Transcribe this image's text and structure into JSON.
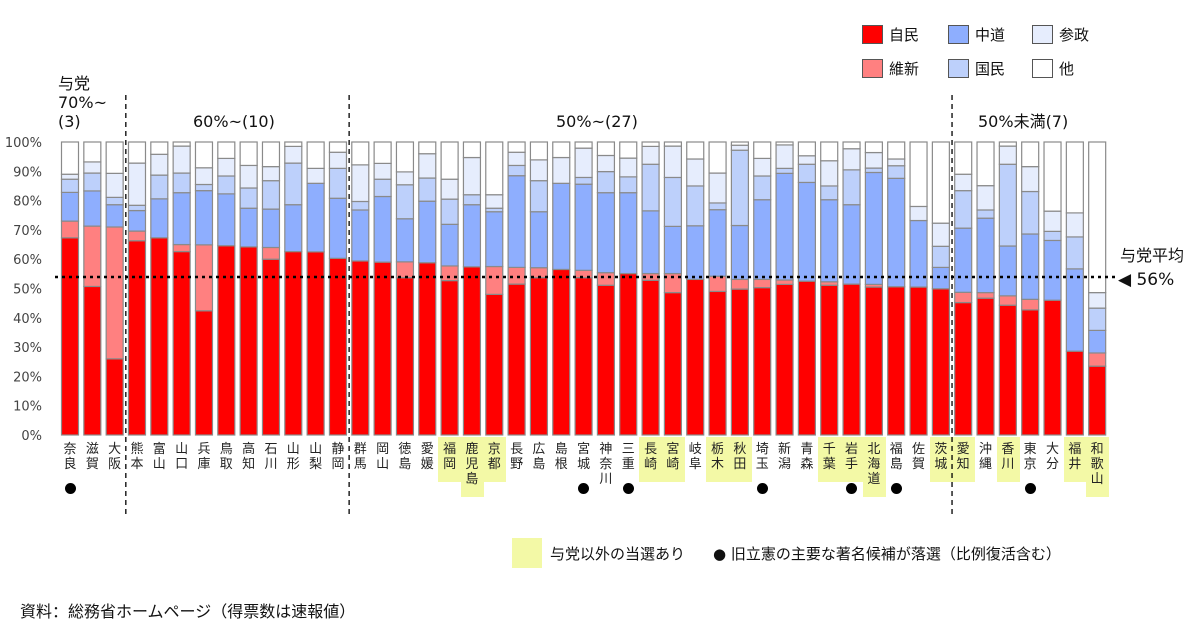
{
  "chart_data": {
    "type": "bar",
    "stacked": true,
    "ylim": [
      0,
      100
    ],
    "y_ticks": [
      "0%",
      "10%",
      "20%",
      "30%",
      "40%",
      "50%",
      "60%",
      "70%",
      "80%",
      "90%",
      "100%"
    ],
    "legend_placement": "top-right",
    "series_names": [
      "自民",
      "維新",
      "中道",
      "国民",
      "参政",
      "他"
    ],
    "series_colors": [
      "#ff0000",
      "#ff8080",
      "#8eaefe",
      "#bdd0fb",
      "#e6edfd",
      "#ffffff"
    ],
    "categories": [
      "奈良",
      "滋賀",
      "大阪",
      "熊本",
      "富山",
      "山口",
      "兵庫",
      "鳥取",
      "高知",
      "石川",
      "山形",
      "山梨",
      "静岡",
      "群馬",
      "岡山",
      "徳島",
      "愛媛",
      "福岡",
      "鹿児島",
      "京都",
      "長野",
      "広島",
      "島根",
      "宮城",
      "神奈川",
      "三重",
      "長崎",
      "宮崎",
      "岐阜",
      "栃木",
      "秋田",
      "埼玉",
      "新潟",
      "青森",
      "千葉",
      "岩手",
      "北海道",
      "福島",
      "佐賀",
      "茨城",
      "愛知",
      "沖縄",
      "香川",
      "東京",
      "大分",
      "福井",
      "和歌山"
    ],
    "series": [
      {
        "name": "自民",
        "values": [
          67.3,
          50.7,
          26,
          66.3,
          67.3,
          62.6,
          42.4,
          64.6,
          64.2,
          60,
          62.6,
          62.5,
          60.3,
          59.4,
          59,
          53.7,
          58.8,
          52.7,
          57.4,
          48,
          51.5,
          53.7,
          56.5,
          53.7,
          51.1,
          55.1,
          52.8,
          48.6,
          53.1,
          49,
          49.8,
          50.3,
          51.4,
          52.5,
          51.1,
          51.5,
          50.5,
          50.6,
          50.5,
          49.9,
          45.2,
          46.7,
          44.3,
          42.7,
          46,
          28.6,
          23.5
        ]
      },
      {
        "name": "維新",
        "values": [
          5.7,
          20.6,
          45,
          3.3,
          0,
          2.4,
          22.5,
          0,
          0,
          4,
          0,
          0,
          0,
          0,
          0,
          5.4,
          0,
          5,
          0,
          9.5,
          5.7,
          3.4,
          0,
          2.5,
          4.3,
          0,
          2.3,
          6.5,
          0,
          5.2,
          3.3,
          2.8,
          1.5,
          0,
          1.2,
          0,
          0.9,
          0,
          0,
          0,
          3.5,
          1.9,
          3.2,
          3.6,
          0,
          0,
          4.5
        ]
      },
      {
        "name": "中道",
        "values": [
          9.8,
          12,
          7.6,
          7,
          13.3,
          17.7,
          18.5,
          17.7,
          13.2,
          13.1,
          16,
          23.4,
          20.5,
          17.4,
          22.4,
          14.7,
          21,
          14.2,
          21.2,
          18.7,
          31.3,
          19.1,
          29.4,
          29.4,
          27.3,
          27.6,
          21.4,
          16.1,
          18.3,
          22.7,
          18.4,
          27.2,
          36.4,
          33.7,
          28,
          27.1,
          38.2,
          37,
          22.7,
          7.3,
          21.9,
          25.4,
          17,
          22.3,
          20.4,
          28.1,
          7.7
        ]
      },
      {
        "name": "国民",
        "values": [
          4.5,
          6.1,
          2.5,
          1.8,
          8.1,
          6.7,
          2.1,
          6.1,
          6.9,
          9.7,
          14.2,
          0,
          10.2,
          2.9,
          5.9,
          11.6,
          7.9,
          8.6,
          3.4,
          1.2,
          3.5,
          10.6,
          0,
          2.3,
          7.2,
          5.4,
          15.9,
          16.7,
          13.6,
          2.3,
          25.7,
          8.1,
          1.7,
          6.2,
          4.7,
          11.9,
          1.5,
          4.3,
          0,
          7.2,
          12.8,
          2.8,
          27.9,
          14.5,
          3.1,
          10.9,
          7.6
        ]
      },
      {
        "name": "参政",
        "values": [
          1.7,
          3.8,
          8.2,
          14.4,
          7.1,
          9.2,
          5.7,
          6,
          7.7,
          4.8,
          5.7,
          5.1,
          5.5,
          12.5,
          5.4,
          4.4,
          8.3,
          6.8,
          12.7,
          4.6,
          4.5,
          7.1,
          8.8,
          10,
          5.5,
          6.4,
          6.1,
          10.7,
          9.2,
          10.2,
          1.7,
          6,
          8,
          2.9,
          8.6,
          7.2,
          5.3,
          2.3,
          4.8,
          7.9,
          5.6,
          8.3,
          6.2,
          8.5,
          6.9,
          8.2,
          5.3
        ]
      },
      {
        "name": "他",
        "values": [
          11,
          6.8,
          10.7,
          7.2,
          4.2,
          1.4,
          8.8,
          5.6,
          8,
          8.4,
          1.5,
          9,
          3.5,
          7.8,
          7.3,
          10.2,
          4,
          12.7,
          5.3,
          18,
          3.5,
          6.1,
          5.3,
          2.1,
          4.6,
          5.5,
          1.5,
          1.4,
          5.8,
          10.6,
          1.1,
          5.6,
          1,
          4.7,
          6.4,
          2.3,
          3.6,
          5.8,
          22,
          27.7,
          11,
          14.9,
          1.4,
          8.4,
          23.6,
          24.2,
          51.4
        ]
      }
    ],
    "highlighted": [
      "福岡",
      "鹿児島",
      "京都",
      "長崎",
      "宮崎",
      "栃木",
      "秋田",
      "千葉",
      "岩手",
      "北海道",
      "茨城",
      "愛知",
      "香川",
      "福井",
      "和歌山"
    ],
    "dotted": [
      "奈良",
      "宮城",
      "三重",
      "埼玉",
      "岩手",
      "福島",
      "東京"
    ],
    "groups": [
      {
        "label_lines": [
          "与党",
          "70%~",
          "(3)"
        ]
      },
      {
        "label": "60%~(10)"
      },
      {
        "label": "50%~(27)"
      },
      {
        "label": "50%未満(7)"
      }
    ],
    "average": {
      "label": "与党平均",
      "value_label": "◀ 56%",
      "value": 56
    }
  },
  "note": {
    "highlight_label": "与党以外の当選あり",
    "dot_label": "● 旧立憲の主要な著名候補が落選（比例復活含む）"
  },
  "source": "資料：総務省ホームページ（得票数は速報値）"
}
